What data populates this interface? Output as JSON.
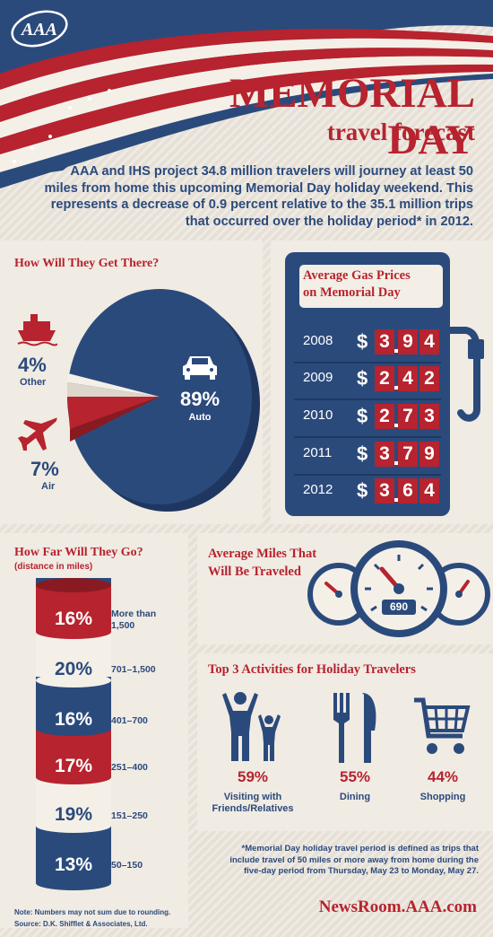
{
  "brand": {
    "logo_text": "AAA"
  },
  "header": {
    "title": "MEMORIAL DAY",
    "subtitle": "travel forecast",
    "intro": "AAA and IHS project 34.8 million travelers will journey at least 50 miles from home this upcoming Memorial Day holiday weekend. This represents a decrease of 0.9 percent relative to the 35.1 million trips that occurred over the holiday period* in 2012."
  },
  "transport": {
    "heading": "How Will They Get There?",
    "other_pct": "4%",
    "other_label": "Other",
    "air_pct": "7%",
    "air_label": "Air",
    "auto_pct": "89%",
    "auto_label": "Auto"
  },
  "gas": {
    "heading_line1": "Average Gas Prices",
    "heading_line2": "on Memorial Day",
    "currency": "$",
    "rows": [
      {
        "year": "2008",
        "digits": [
          "3",
          "9",
          "4"
        ]
      },
      {
        "year": "2009",
        "digits": [
          "2",
          "4",
          "2"
        ]
      },
      {
        "year": "2010",
        "digits": [
          "2",
          "7",
          "3"
        ]
      },
      {
        "year": "2011",
        "digits": [
          "3",
          "7",
          "9"
        ]
      },
      {
        "year": "2012",
        "digits": [
          "3",
          "6",
          "4"
        ]
      }
    ]
  },
  "distance": {
    "heading": "How Far Will They Go?",
    "subheading": "(distance in miles)",
    "segments": [
      {
        "pct": "16%",
        "label": "More than 1,500"
      },
      {
        "pct": "20%",
        "label": "701–1,500"
      },
      {
        "pct": "16%",
        "label": "401–700"
      },
      {
        "pct": "17%",
        "label": "251–400"
      },
      {
        "pct": "19%",
        "label": "151–250"
      },
      {
        "pct": "13%",
        "label": "50–150"
      }
    ],
    "note": "Note: Numbers may not sum due to rounding.",
    "source": "Source: D.K. Shifflet & Associates, Ltd."
  },
  "miles": {
    "heading_line1": "Average Miles That",
    "heading_line2": "Will Be Traveled",
    "value": "690"
  },
  "activities": {
    "heading": "Top 3 Activities for Holiday Travelers",
    "items": [
      {
        "pct": "59%",
        "label": "Visiting with Friends/Relatives",
        "icon": "family-icon"
      },
      {
        "pct": "55%",
        "label": "Dining",
        "icon": "fork-knife-icon"
      },
      {
        "pct": "44%",
        "label": "Shopping",
        "icon": "shopping-cart-icon"
      }
    ]
  },
  "footnote": "*Memorial Day holiday travel period is defined as trips that include travel of 50 miles or more away from home during the five-day period from Thursday, May 23 to Monday, May 27.",
  "website": "NewsRoom.AAA.com",
  "colors": {
    "red": "#b7232e",
    "blue": "#2b4a7c",
    "cream": "#f0ebe3"
  }
}
